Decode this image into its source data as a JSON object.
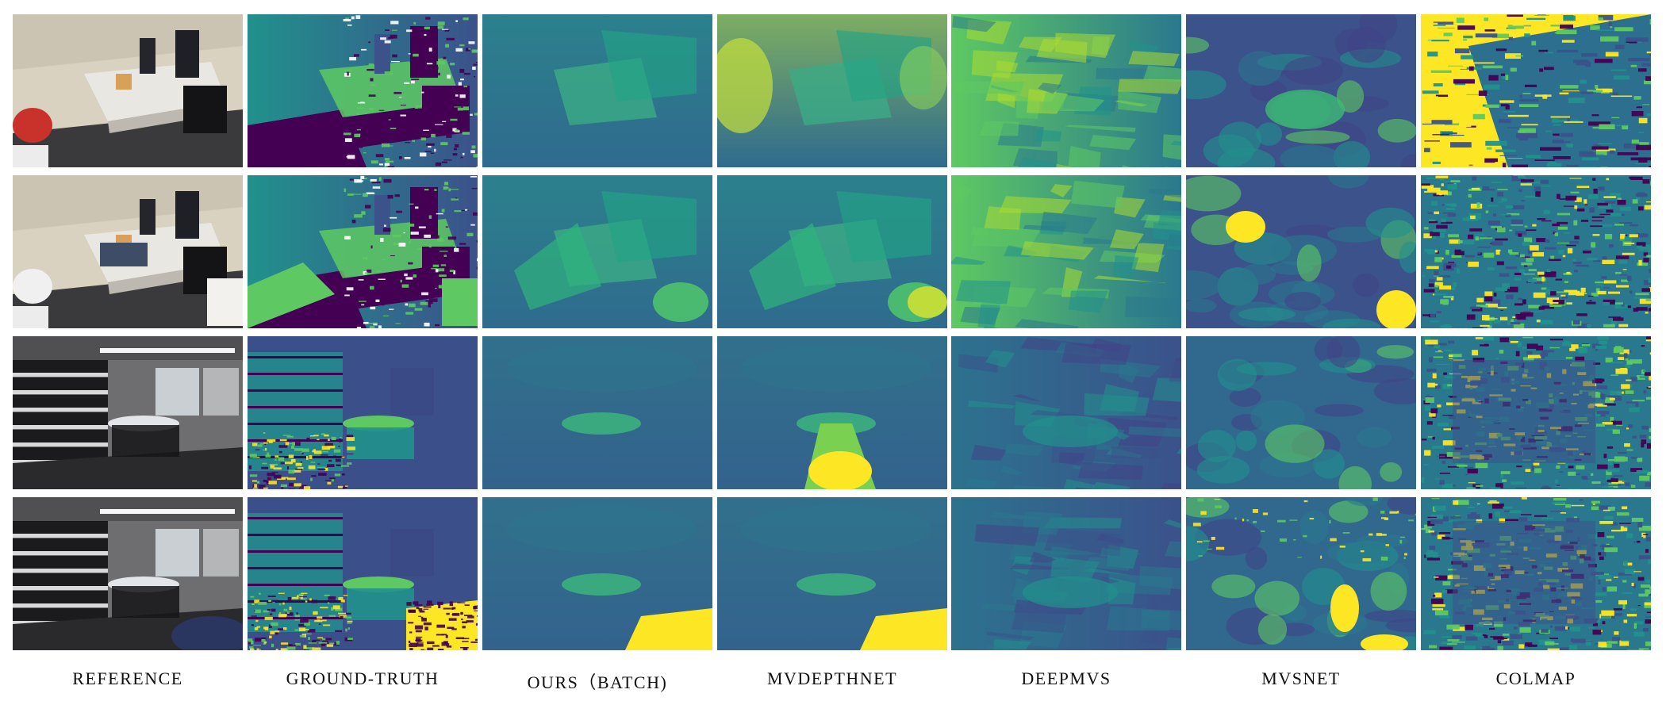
{
  "figure": {
    "columns": [
      {
        "id": "reference",
        "label": "REFERENCE"
      },
      {
        "id": "ground-truth",
        "label": "GROUND-TRUTH"
      },
      {
        "id": "ours-batch",
        "label": "OURS（BATCH)"
      },
      {
        "id": "mvdepthnet",
        "label": "MVDEPTHNET"
      },
      {
        "id": "deepmvs",
        "label": "DEEPMVS"
      },
      {
        "id": "mvsnet",
        "label": "MVSNET"
      },
      {
        "id": "colmap",
        "label": "COLMAP"
      }
    ],
    "rows": [
      {
        "id": "office-1",
        "scene": "office"
      },
      {
        "id": "office-2",
        "scene": "office"
      },
      {
        "id": "library-1",
        "scene": "library"
      },
      {
        "id": "library-2",
        "scene": "library"
      }
    ]
  },
  "colors": {
    "viridis_dark": "#440154",
    "viridis_blue": "#3b528b",
    "viridis_teal": "#21918c",
    "viridis_green": "#5ec962",
    "viridis_yellow": "#fde725"
  }
}
